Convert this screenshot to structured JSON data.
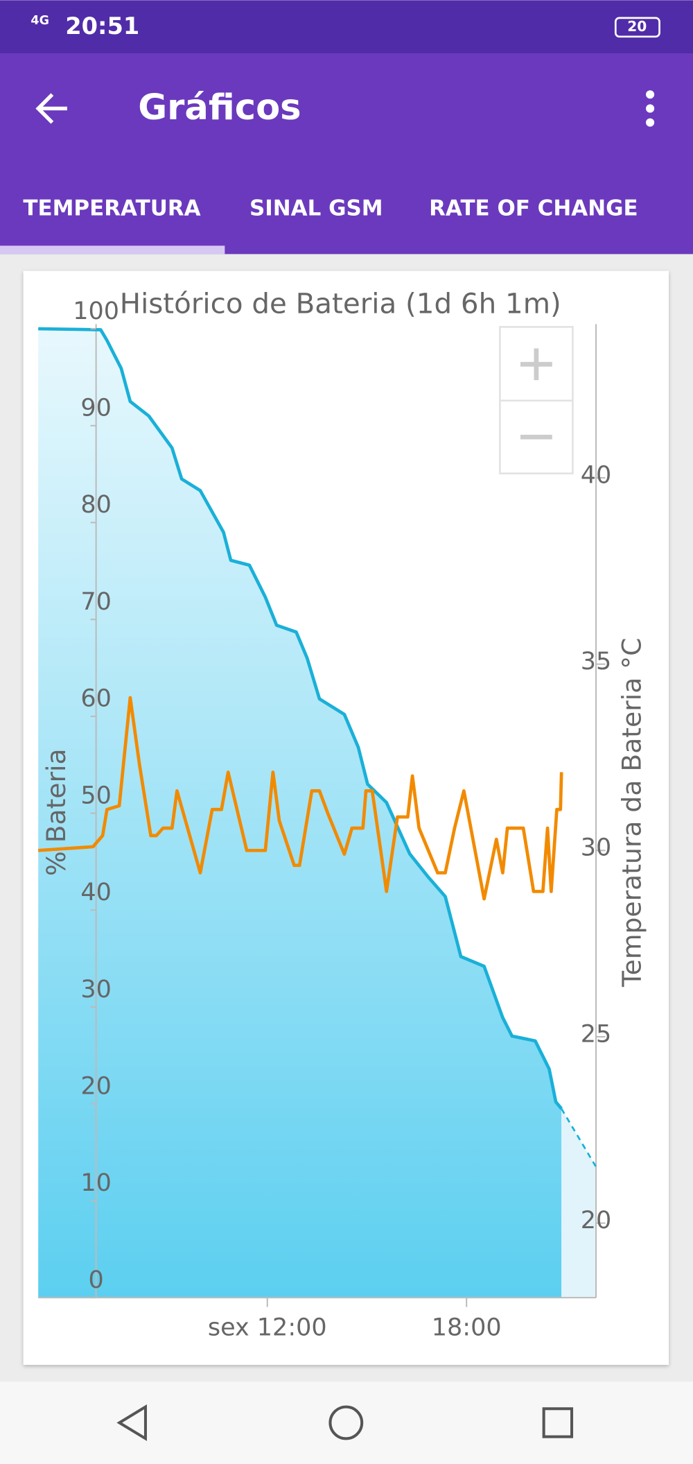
{
  "status_bar": {
    "network": "4G",
    "time": "20:51",
    "battery": "20"
  },
  "app_bar": {
    "title": "Gráficos"
  },
  "tabs": [
    "TEMPERATURA",
    "SINAL GSM",
    "RATE OF CHANGE"
  ],
  "chart_data": {
    "type": "line",
    "title": "Histórico de Bateria (1d 6h 1m)",
    "y_label": "% Bateria",
    "y2_label": "Temperatura da Bateria °C",
    "xlim": [
      5.1,
      21.9
    ],
    "xticks": [
      {
        "value": 12,
        "label": "sex 12:00"
      },
      {
        "value": 18,
        "label": "18:00"
      }
    ],
    "ylim": [
      0,
      100
    ],
    "yticks": [
      0,
      10,
      20,
      30,
      40,
      50,
      60,
      70,
      80,
      90,
      100
    ],
    "y2lim": [
      18,
      44
    ],
    "y2ticks": [
      20,
      25,
      30,
      35,
      40
    ],
    "series": [
      {
        "color": "#1ab0d8",
        "area": true,
        "x": [
          5.1,
          6.98,
          7.17,
          7.6,
          7.87,
          8.43,
          9.13,
          9.42,
          9.98,
          10.68,
          10.9,
          11.46,
          11.94,
          12.28,
          12.87,
          13.2,
          13.57,
          14.32,
          14.74,
          15.02,
          15.59,
          16.29,
          16.85,
          17.36,
          17.83,
          18.53,
          19.09,
          19.37,
          20.07,
          20.49,
          20.69,
          20.86
        ],
        "values": [
          100,
          99.9,
          98.8,
          95.9,
          92.5,
          91,
          87.7,
          84.5,
          83.3,
          79,
          76.1,
          75.6,
          72.3,
          69.4,
          68.7,
          66,
          61.8,
          60.2,
          56.8,
          53,
          51.1,
          45.8,
          43.4,
          41.4,
          35.2,
          34.2,
          28.9,
          27,
          26.5,
          23.6,
          20.2,
          19.5
        ]
      },
      {
        "color": "#1ab0d8",
        "area": true,
        "dashed": true,
        "x": [
          20.86,
          21.9
        ],
        "values": [
          19.5,
          13.5
        ]
      },
      {
        "color": "#f28a00",
        "axis": "y2",
        "x": [
          5.1,
          6.75,
          7.04,
          7.17,
          7.54,
          7.87,
          8.15,
          8.49,
          8.66,
          8.86,
          9.13,
          9.28,
          9.98,
          10.34,
          10.62,
          10.82,
          11.38,
          11.94,
          12.17,
          12.36,
          12.81,
          12.97,
          13.34,
          13.57,
          13.82,
          14.32,
          14.55,
          14.88,
          14.97,
          15.16,
          15.59,
          15.92,
          16.23,
          16.37,
          16.57,
          17.13,
          17.36,
          17.64,
          17.92,
          18.53,
          18.9,
          19.09,
          19.23,
          19.71,
          20.02,
          20.3,
          20.44,
          20.55,
          20.72,
          20.83,
          20.86
        ],
        "values": [
          30.0,
          30.1,
          30.4,
          31.1,
          31.2,
          34.1,
          32.3,
          30.4,
          30.4,
          30.6,
          30.6,
          31.6,
          29.4,
          31.1,
          31.1,
          32.1,
          30.0,
          30.0,
          32.1,
          30.8,
          29.6,
          29.6,
          31.6,
          31.6,
          31.0,
          29.9,
          30.6,
          30.6,
          31.6,
          31.6,
          28.9,
          30.9,
          30.9,
          32.0,
          30.6,
          29.4,
          29.4,
          30.6,
          31.6,
          28.7,
          30.3,
          29.4,
          30.6,
          30.6,
          28.9,
          28.9,
          30.6,
          28.9,
          31.1,
          31.1,
          32.1
        ]
      }
    ]
  }
}
